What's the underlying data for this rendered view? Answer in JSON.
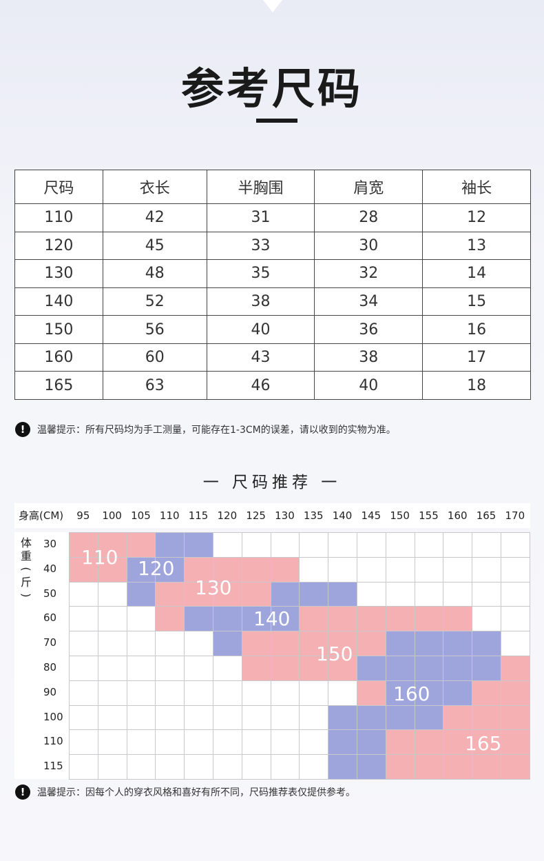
{
  "title": "参考尺码",
  "size_table": {
    "headers": [
      "尺码",
      "衣长",
      "半胸围",
      "肩宽",
      "袖长"
    ],
    "rows": [
      [
        "110",
        "42",
        "31",
        "28",
        "12"
      ],
      [
        "120",
        "45",
        "33",
        "30",
        "13"
      ],
      [
        "130",
        "48",
        "35",
        "32",
        "14"
      ],
      [
        "140",
        "52",
        "38",
        "34",
        "15"
      ],
      [
        "150",
        "56",
        "40",
        "36",
        "16"
      ],
      [
        "160",
        "60",
        "43",
        "38",
        "17"
      ],
      [
        "165",
        "63",
        "46",
        "40",
        "18"
      ]
    ]
  },
  "tip1": "温馨提示：所有尺码均为手工测量，可能存在1-3CM的误差，请以收到的实物为准。",
  "recommend_title": "一 尺码推荐 一",
  "recommend_grid": {
    "height_label": "身高(CM)",
    "heights": [
      "95",
      "100",
      "105",
      "110",
      "115",
      "120",
      "125",
      "130",
      "135",
      "140",
      "145",
      "150",
      "155",
      "160",
      "165",
      "170"
    ],
    "weight_label": "体重(斤)",
    "weights": [
      "30",
      "40",
      "50",
      "60",
      "70",
      "80",
      "90",
      "100",
      "110",
      "115"
    ],
    "colors": {
      "pink": "#f4b0b3",
      "blue": "#9ea5dc",
      "empty": "#ffffff"
    },
    "cells": [
      "PPPBB...........",
      "PPBBPPPP........",
      "..BPPPPBBB......",
      "...PBBBBPPPPPP..",
      ".....BPPPPPBBBB.",
      "......PPPPBBBBBP",
      "..........PBBBPP",
      ".........BBBBPPP",
      ".........BBPPPPP",
      ".........BBPPPPP"
    ],
    "size_labels": [
      "110",
      "120",
      "130",
      "140",
      "150",
      "160",
      "165"
    ]
  },
  "tip2": "温馨提示：因每个人的穿衣风格和喜好有所不同，尺码推荐表仅提供参考。",
  "icons": {
    "warning": "exclamation-circle-icon"
  }
}
